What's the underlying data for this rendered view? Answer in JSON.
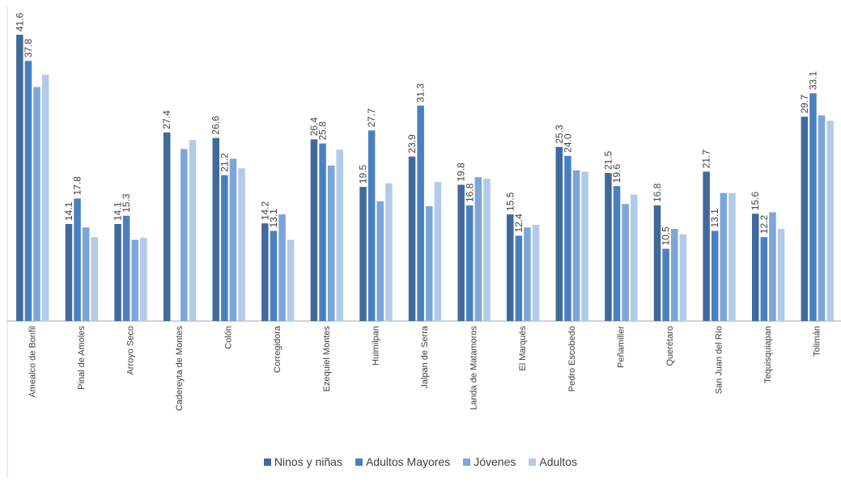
{
  "chart_data": {
    "type": "bar",
    "categories": [
      "Amealco de Bonfil",
      "Pinal de Amoles",
      "Arroyo Seco",
      "Cadereyta de Montes",
      "Colón",
      "Corregidora",
      "Ezequiel Montes",
      "Huimilpan",
      "Jalpan de Serra",
      "Landa de Matamoros",
      "El Marqués",
      "Pedro Escobedo",
      "Peñamiller",
      "Querétaro",
      "San Juan del Río",
      "Tequisquiapan",
      "Tolimán"
    ],
    "series": [
      {
        "name": "Ninos y niñas",
        "color": "#41699c",
        "values": [
          41.6,
          14.1,
          14.1,
          27.4,
          26.6,
          14.2,
          26.4,
          19.5,
          23.9,
          19.8,
          15.5,
          25.3,
          21.5,
          16.8,
          21.7,
          15.6,
          29.7
        ]
      },
      {
        "name": "Adultos Mayores",
        "color": "#4a80bf",
        "values": [
          37.8,
          17.8,
          15.3,
          null,
          21.2,
          13.1,
          25.8,
          27.7,
          31.3,
          16.8,
          12.4,
          24.0,
          19.6,
          10.5,
          13.1,
          12.2,
          33.1
        ]
      },
      {
        "name": "Jóvenes",
        "color": "#7ca5d8",
        "values": [
          34.0,
          13.6,
          11.8,
          25.0,
          23.6,
          15.5,
          22.6,
          17.4,
          16.7,
          20.9,
          13.6,
          21.9,
          17.0,
          13.4,
          18.6,
          15.8,
          29.9
        ]
      },
      {
        "name": "Adultos",
        "color": "#b2cbe9",
        "values": [
          35.8,
          12.2,
          12.1,
          26.3,
          22.2,
          11.8,
          24.9,
          20.0,
          20.2,
          20.7,
          14.0,
          21.7,
          18.4,
          12.6,
          18.6,
          13.4,
          29.1
        ]
      }
    ],
    "data_labels": [
      [
        41.6,
        14.1,
        14.1,
        27.4,
        26.6,
        14.2,
        26.4,
        19.5,
        23.9,
        19.8,
        15.5,
        25.3,
        21.5,
        16.8,
        21.7,
        15.6,
        29.7
      ],
      [
        37.8,
        17.8,
        15.3,
        null,
        21.2,
        13.1,
        25.8,
        27.7,
        31.3,
        16.8,
        12.4,
        "24.0",
        19.6,
        10.5,
        13.1,
        12.2,
        33.1
      ]
    ],
    "ylim": [
      0,
      42
    ],
    "grid": false,
    "legend_position": "bottom",
    "title": "",
    "xlabel": "",
    "ylabel": ""
  }
}
